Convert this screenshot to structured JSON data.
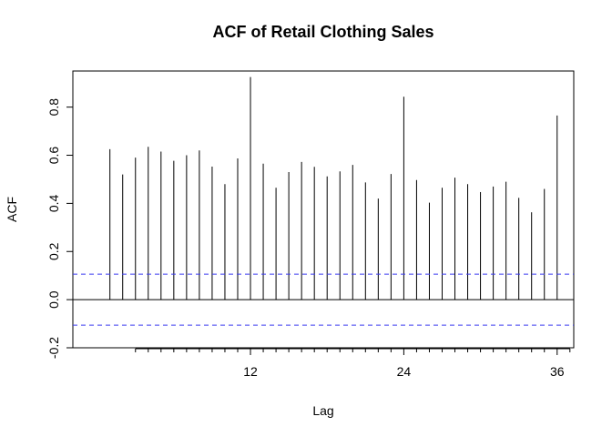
{
  "chart_data": {
    "type": "bar",
    "title": "ACF of Retail Clothing Sales",
    "xlabel": "Lag",
    "ylabel": "ACF",
    "xlim": [
      -1.9,
      37.3
    ],
    "ylim": [
      -0.2,
      0.95
    ],
    "x_ticks": [
      12,
      24,
      36
    ],
    "y_ticks": [
      -0.2,
      0.0,
      0.2,
      0.4,
      0.6,
      0.8
    ],
    "minor_x_ticks": [
      3,
      4,
      5,
      6,
      7,
      8,
      9,
      10,
      11,
      13,
      14,
      15,
      16,
      17,
      18,
      19,
      20,
      21,
      22,
      23,
      25,
      26,
      27,
      28,
      29,
      30,
      31,
      32,
      33,
      34,
      35,
      37
    ],
    "x": [
      1,
      2,
      3,
      4,
      5,
      6,
      7,
      8,
      9,
      10,
      11,
      12,
      13,
      14,
      15,
      16,
      17,
      18,
      19,
      20,
      21,
      22,
      23,
      24,
      25,
      26,
      27,
      28,
      29,
      30,
      31,
      32,
      33,
      34,
      35,
      36
    ],
    "values": [
      0.625,
      0.52,
      0.59,
      0.635,
      0.615,
      0.577,
      0.6,
      0.62,
      0.553,
      0.48,
      0.587,
      0.925,
      0.565,
      0.465,
      0.53,
      0.572,
      0.552,
      0.512,
      0.533,
      0.56,
      0.487,
      0.42,
      0.522,
      0.843,
      0.497,
      0.403,
      0.465,
      0.507,
      0.48,
      0.447,
      0.47,
      0.49,
      0.423,
      0.363,
      0.46,
      0.765
    ],
    "confidence_bounds": [
      0.106,
      -0.106
    ],
    "colors": {
      "bars": "#000000",
      "bounds": "#3b3bf0",
      "zero_line": "#000000"
    },
    "grid": false
  }
}
